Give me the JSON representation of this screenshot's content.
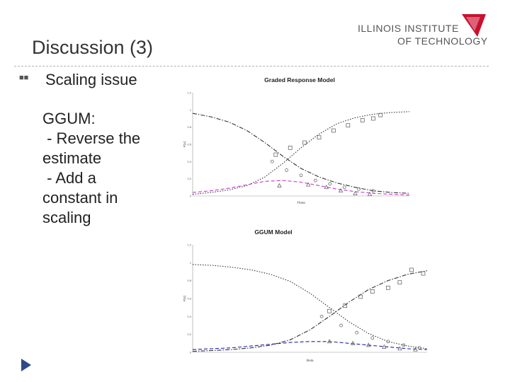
{
  "slide": {
    "title": "Discussion (3)",
    "logo_line1": "ILLINOIS INSTITUTE",
    "logo_line2": "OF TECHNOLOGY",
    "bullet": "Scaling issue",
    "body": "GGUM:\n - Reverse the\nestimate\n - Add a\nconstant in\nscaling",
    "accent_color": "#2e4a8a",
    "logo_red": "#c8102e"
  },
  "chart_data": [
    {
      "type": "line",
      "title": "Graded Response Model",
      "xlabel": "Theta",
      "ylabel": "P(x)",
      "ylim": [
        0,
        1.2
      ],
      "yticks": [
        "0",
        "0.2",
        "0.4",
        "0.6",
        "0.8",
        "1",
        "1.2"
      ],
      "x": [
        -3,
        -2.5,
        -2,
        -1.5,
        -1,
        -0.5,
        0,
        0.5,
        1,
        1.5,
        2,
        2.5,
        3
      ],
      "series": [
        {
          "values": [
            0.96,
            0.92,
            0.86,
            0.76,
            0.62,
            0.46,
            0.32,
            0.22,
            0.15,
            0.1,
            0.06,
            0.04,
            0.03
          ],
          "style": "dashdot",
          "color": "#333333"
        },
        {
          "values": [
            0.02,
            0.04,
            0.07,
            0.12,
            0.22,
            0.38,
            0.56,
            0.72,
            0.84,
            0.91,
            0.95,
            0.97,
            0.98
          ],
          "style": "dotted",
          "color": "#333333"
        },
        {
          "values": [
            0.04,
            0.06,
            0.09,
            0.13,
            0.17,
            0.18,
            0.16,
            0.12,
            0.08,
            0.05,
            0.03,
            0.02,
            0.01
          ],
          "style": "dashed",
          "color": "#cc33cc"
        }
      ],
      "markers": {
        "square": [
          [
            -0.7,
            0.48
          ],
          [
            -0.3,
            0.56
          ],
          [
            0.1,
            0.62
          ],
          [
            0.5,
            0.68
          ],
          [
            0.9,
            0.76
          ],
          [
            1.3,
            0.82
          ],
          [
            1.7,
            0.88
          ],
          [
            2.0,
            0.9
          ],
          [
            2.2,
            0.94
          ]
        ],
        "circle": [
          [
            -0.8,
            0.4
          ],
          [
            -0.4,
            0.3
          ],
          [
            0,
            0.24
          ],
          [
            0.4,
            0.18
          ],
          [
            0.8,
            0.14
          ],
          [
            1.2,
            0.1
          ],
          [
            1.6,
            0.08
          ],
          [
            2.0,
            0.06
          ]
        ],
        "triangle": [
          [
            -0.6,
            0.12
          ],
          [
            0.2,
            0.13
          ],
          [
            0.7,
            0.1
          ],
          [
            1.1,
            0.06
          ],
          [
            1.5,
            0.03
          ],
          [
            1.9,
            0.02
          ]
        ]
      }
    },
    {
      "type": "line",
      "title": "GGUM Model",
      "xlabel": "theta",
      "ylabel": "P(x)",
      "ylim": [
        0,
        1.2
      ],
      "yticks": [
        "0",
        "0.2",
        "0.4",
        "0.6",
        "0.8",
        "1",
        "1.2"
      ],
      "x": [
        -3,
        -2.5,
        -2,
        -1.5,
        -1,
        -0.5,
        0,
        0.5,
        1,
        1.5,
        2,
        2.5,
        3
      ],
      "series": [
        {
          "values": [
            0.98,
            0.97,
            0.95,
            0.92,
            0.87,
            0.79,
            0.66,
            0.5,
            0.34,
            0.21,
            0.12,
            0.07,
            0.04
          ],
          "style": "dotted",
          "color": "#333333"
        },
        {
          "values": [
            0.01,
            0.02,
            0.03,
            0.05,
            0.08,
            0.14,
            0.25,
            0.4,
            0.56,
            0.7,
            0.8,
            0.87,
            0.91
          ],
          "style": "dashdot",
          "color": "#333333"
        },
        {
          "values": [
            0.03,
            0.04,
            0.05,
            0.07,
            0.09,
            0.11,
            0.12,
            0.12,
            0.1,
            0.08,
            0.06,
            0.04,
            0.03
          ],
          "style": "dashed",
          "color": "#2222aa"
        }
      ],
      "markers": {
        "square": [
          [
            0.5,
            0.46
          ],
          [
            0.9,
            0.52
          ],
          [
            1.3,
            0.62
          ],
          [
            1.6,
            0.68
          ],
          [
            2.0,
            0.72
          ],
          [
            2.3,
            0.78
          ],
          [
            2.6,
            0.92
          ],
          [
            2.9,
            0.88
          ]
        ],
        "circle": [
          [
            0.3,
            0.4
          ],
          [
            0.8,
            0.3
          ],
          [
            1.2,
            0.22
          ],
          [
            1.6,
            0.16
          ],
          [
            2.0,
            0.12
          ],
          [
            2.4,
            0.08
          ],
          [
            2.8,
            0.05
          ]
        ],
        "triangle": [
          [
            0.5,
            0.12
          ],
          [
            1.1,
            0.1
          ],
          [
            1.5,
            0.08
          ],
          [
            1.9,
            0.06
          ],
          [
            2.3,
            0.04
          ],
          [
            2.7,
            0.03
          ]
        ]
      }
    }
  ]
}
